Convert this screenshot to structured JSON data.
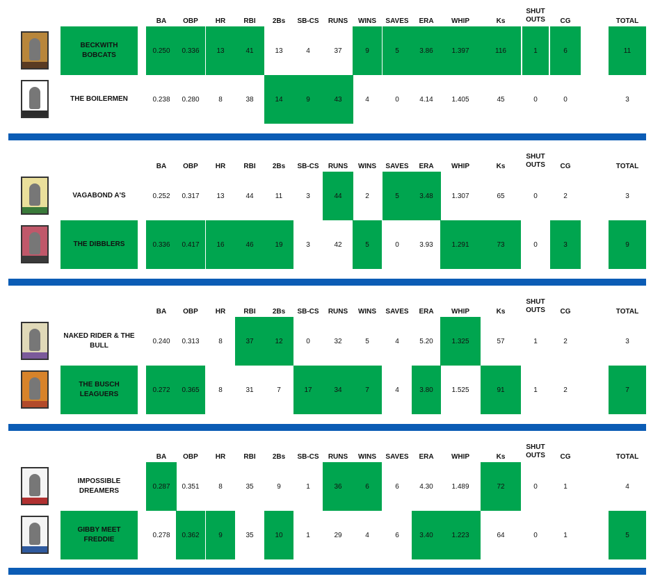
{
  "headers": [
    "BA",
    "OBP",
    "HR",
    "RBI",
    "2Bs",
    "SB-CS",
    "RUNS",
    "WINS",
    "SAVES",
    "ERA",
    "WHIP",
    "Ks",
    "SHUT|OUTS",
    "CG"
  ],
  "total_label": "TOTAL",
  "colors": {
    "win": "#00a54f",
    "divider": "#0b5cb5"
  },
  "matchups": [
    {
      "teams": [
        {
          "name": "BECKWITH BOBCATS",
          "card": "baseball-card-pitcher-icon",
          "stats": [
            "0.250",
            "0.336",
            "13",
            "41",
            "13",
            "4",
            "37",
            "9",
            "5",
            "3.86",
            "1.397",
            "116",
            "1",
            "6"
          ],
          "total": "11",
          "won": [
            1,
            1,
            1,
            1,
            0,
            0,
            0,
            1,
            1,
            1,
            1,
            1,
            1,
            1
          ],
          "total_won": 1,
          "name_won": 1
        },
        {
          "name": "THE BOILERMEN",
          "card": "baseball-card-player-icon",
          "stats": [
            "0.238",
            "0.280",
            "8",
            "38",
            "14",
            "9",
            "43",
            "4",
            "0",
            "4.14",
            "1.405",
            "45",
            "0",
            "0"
          ],
          "total": "3",
          "won": [
            0,
            0,
            0,
            0,
            1,
            1,
            1,
            0,
            0,
            0,
            0,
            0,
            0,
            0
          ],
          "total_won": 0,
          "name_won": 0
        }
      ]
    },
    {
      "teams": [
        {
          "name": "VAGABOND A'S",
          "card": "baseball-card-batter-icon",
          "stats": [
            "0.252",
            "0.317",
            "13",
            "44",
            "11",
            "3",
            "44",
            "2",
            "5",
            "3.48",
            "1.307",
            "65",
            "0",
            "2"
          ],
          "total": "3",
          "won": [
            0,
            0,
            0,
            0,
            0,
            0,
            1,
            0,
            1,
            1,
            0,
            0,
            0,
            0
          ],
          "total_won": 0,
          "name_won": 0
        },
        {
          "name": "THE DIBBLERS",
          "card": "baseball-card-player-icon",
          "stats": [
            "0.336",
            "0.417",
            "16",
            "46",
            "19",
            "3",
            "42",
            "5",
            "0",
            "3.93",
            "1.291",
            "73",
            "0",
            "3"
          ],
          "total": "9",
          "won": [
            1,
            1,
            1,
            1,
            1,
            0,
            0,
            1,
            0,
            0,
            1,
            1,
            0,
            1
          ],
          "total_won": 1,
          "name_won": 1
        }
      ]
    },
    {
      "teams": [
        {
          "name": "NAKED RIDER & THE BULL",
          "card": "baseball-card-batter-icon",
          "stats": [
            "0.240",
            "0.313",
            "8",
            "37",
            "12",
            "0",
            "32",
            "5",
            "4",
            "5.20",
            "1.325",
            "57",
            "1",
            "2"
          ],
          "total": "3",
          "won": [
            0,
            0,
            0,
            1,
            1,
            0,
            0,
            0,
            0,
            0,
            1,
            0,
            0,
            0
          ],
          "total_won": 0,
          "name_won": 0
        },
        {
          "name": "THE BUSCH LEAGUERS",
          "card": "baseball-card-player-icon",
          "stats": [
            "0.272",
            "0.365",
            "8",
            "31",
            "7",
            "17",
            "34",
            "7",
            "4",
            "3.80",
            "1.525",
            "91",
            "1",
            "2"
          ],
          "total": "7",
          "won": [
            1,
            1,
            0,
            0,
            0,
            1,
            1,
            1,
            0,
            1,
            0,
            1,
            0,
            0
          ],
          "total_won": 1,
          "name_won": 1
        }
      ]
    },
    {
      "teams": [
        {
          "name": "IMPOSSIBLE DREAMERS",
          "card": "baseball-card-player-icon",
          "stats": [
            "0.287",
            "0.351",
            "8",
            "35",
            "9",
            "1",
            "36",
            "6",
            "6",
            "4.30",
            "1.489",
            "72",
            "0",
            "1"
          ],
          "total": "4",
          "won": [
            1,
            0,
            0,
            0,
            0,
            0,
            1,
            1,
            0,
            0,
            0,
            1,
            0,
            0
          ],
          "total_won": 0,
          "name_won": 0
        },
        {
          "name": "GIBBY MEET FREDDIE",
          "card": "baseball-card-batter-icon",
          "stats": [
            "0.278",
            "0.362",
            "9",
            "35",
            "10",
            "1",
            "29",
            "4",
            "6",
            "3.40",
            "1.223",
            "64",
            "0",
            "1"
          ],
          "total": "5",
          "won": [
            0,
            1,
            1,
            0,
            1,
            0,
            0,
            0,
            0,
            1,
            1,
            0,
            0,
            0
          ],
          "total_won": 1,
          "name_won": 1
        }
      ]
    }
  ]
}
